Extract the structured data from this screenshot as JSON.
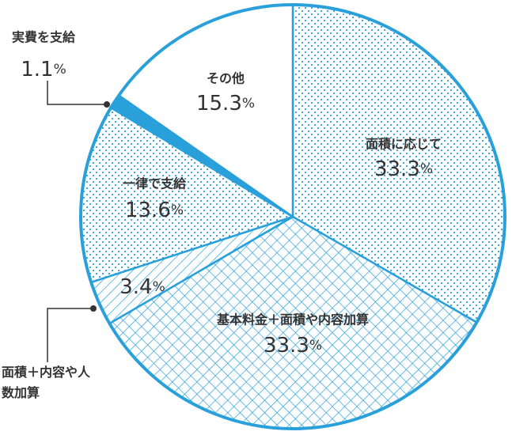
{
  "chart_data": {
    "type": "pie",
    "categories": [
      "面積に応じて",
      "基本料金＋面積や内容加算",
      "面積＋内容や人数加算",
      "一律で支給",
      "実費を支給",
      "その他"
    ],
    "values": [
      33.3,
      33.3,
      3.4,
      13.6,
      1.1,
      15.3
    ],
    "value_labels": [
      "33.3%",
      "33.3%",
      "3.4%",
      "13.6%",
      "1.1%",
      "15.3%"
    ],
    "color": "#29a0da",
    "patterns": [
      "dots",
      "crosshatch",
      "hatch",
      "dots",
      "solid",
      "none"
    ]
  }
}
